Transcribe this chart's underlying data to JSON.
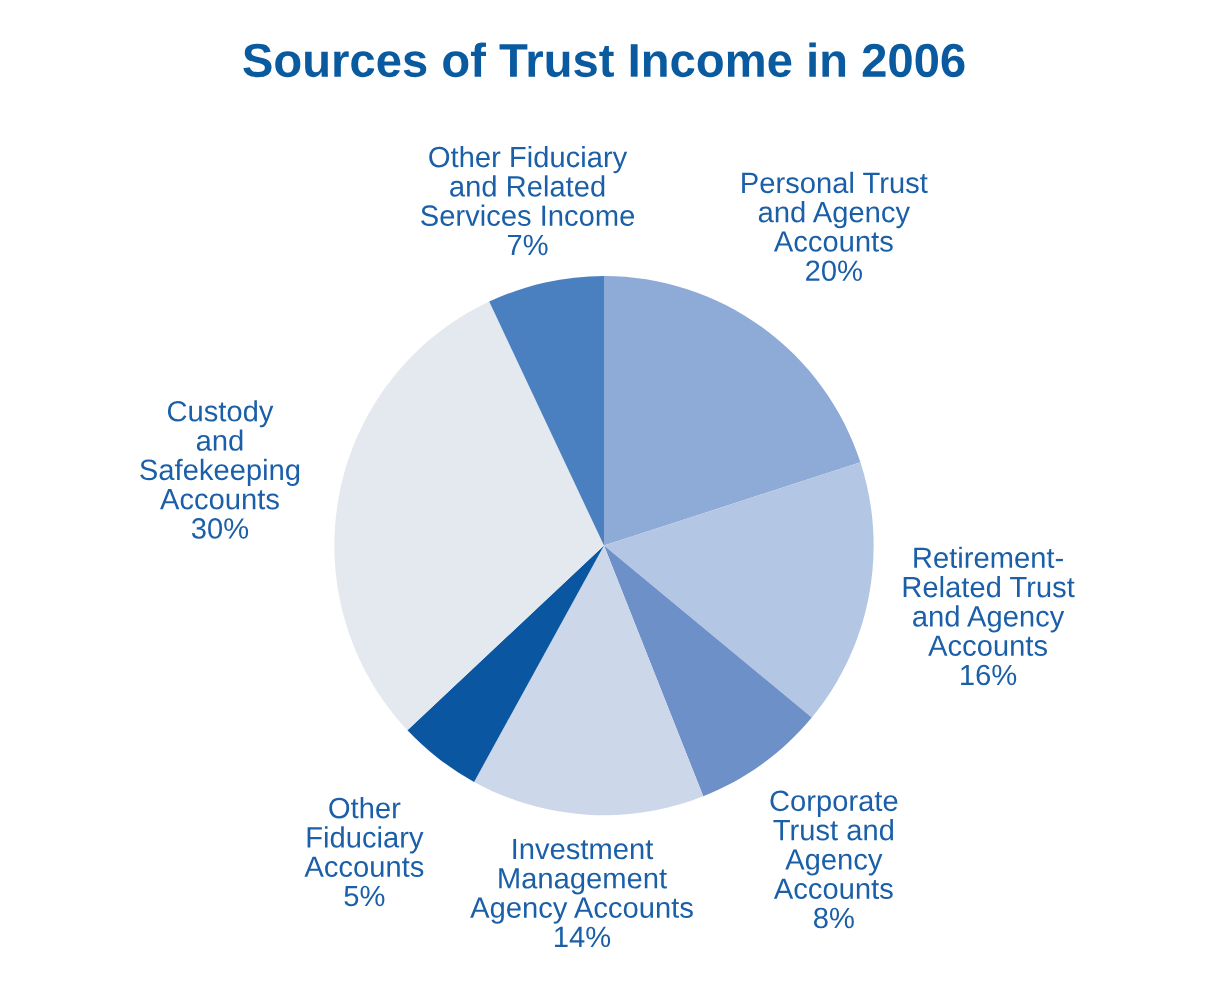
{
  "chart_data": {
    "type": "pie",
    "title": "Sources of Trust Income in 2006",
    "categories": [
      "Personal Trust\nand Agency\nAccounts",
      "Retirement-\nRelated Trust\nand Agency\nAccounts",
      "Corporate\nTrust and\nAgency\nAccounts",
      "Investment\nManagement\nAgency Accounts",
      "Other\nFiduciary\nAccounts",
      "Custody\nand\nSafekeeping\nAccounts",
      "Other Fiduciary\nand Related\nServices Income"
    ],
    "values": [
      20,
      16,
      8,
      14,
      5,
      30,
      7
    ],
    "colors": [
      "#8eaad6",
      "#b3c6e3",
      "#6d90c8",
      "#ccd8ea",
      "#0a56a0",
      "#e4e8ef",
      "#4a80c0"
    ],
    "value_labels": [
      "20%",
      "16%",
      "8%",
      "14%",
      "5%",
      "30%",
      "7%"
    ]
  }
}
